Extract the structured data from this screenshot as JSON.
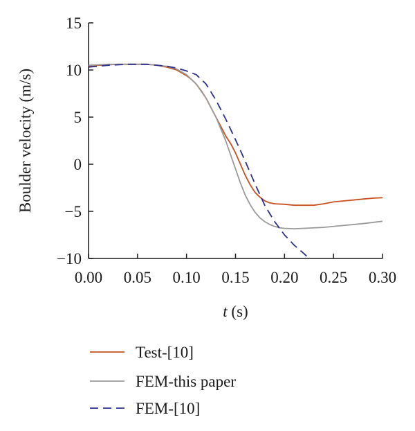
{
  "chart_data": {
    "type": "line",
    "xlabel_var": "t",
    "xlabel_unit": " (s)",
    "ylabel": "Boulder velocity (m/s)",
    "xlim": [
      0.0,
      0.3
    ],
    "ylim": [
      -10,
      15
    ],
    "x_ticks": [
      0.0,
      0.05,
      0.1,
      0.15,
      0.2,
      0.25,
      0.3
    ],
    "x_tick_labels": [
      "0.00",
      "0.05",
      "0.10",
      "0.15",
      "0.20",
      "0.25",
      "0.30"
    ],
    "y_ticks": [
      -10,
      -5,
      0,
      5,
      10,
      15
    ],
    "y_tick_labels": [
      "−10",
      "−5",
      "0",
      "5",
      "10",
      "15"
    ],
    "grid": false,
    "legend_position": "bottom",
    "series": [
      {
        "name": "Test-[10]",
        "color": "#c8501e",
        "dash": "solid",
        "x": [
          0.0,
          0.01,
          0.02,
          0.03,
          0.04,
          0.05,
          0.06,
          0.07,
          0.08,
          0.09,
          0.1,
          0.105,
          0.11,
          0.115,
          0.12,
          0.125,
          0.13,
          0.135,
          0.14,
          0.145,
          0.15,
          0.155,
          0.16,
          0.165,
          0.17,
          0.175,
          0.18,
          0.185,
          0.19,
          0.2,
          0.21,
          0.22,
          0.23,
          0.24,
          0.25,
          0.26,
          0.27,
          0.28,
          0.29,
          0.3
        ],
        "y": [
          10.4,
          10.5,
          10.55,
          10.6,
          10.6,
          10.6,
          10.6,
          10.5,
          10.3,
          10.0,
          9.4,
          9.0,
          8.5,
          7.8,
          7.0,
          6.0,
          5.0,
          4.0,
          3.0,
          2.2,
          1.2,
          0.0,
          -1.2,
          -2.2,
          -3.0,
          -3.5,
          -3.9,
          -4.1,
          -4.2,
          -4.25,
          -4.35,
          -4.35,
          -4.35,
          -4.2,
          -4.0,
          -3.9,
          -3.8,
          -3.7,
          -3.6,
          -3.55
        ]
      },
      {
        "name": "FEM-this paper",
        "color": "#9a9a9a",
        "dash": "solid",
        "x": [
          0.0,
          0.02,
          0.04,
          0.06,
          0.08,
          0.09,
          0.1,
          0.11,
          0.12,
          0.13,
          0.14,
          0.145,
          0.15,
          0.155,
          0.16,
          0.165,
          0.17,
          0.175,
          0.18,
          0.185,
          0.19,
          0.195,
          0.2,
          0.21,
          0.22,
          0.24,
          0.26,
          0.28,
          0.3
        ],
        "y": [
          10.5,
          10.6,
          10.6,
          10.6,
          10.4,
          10.1,
          9.5,
          8.5,
          7.0,
          5.0,
          2.5,
          1.0,
          -0.5,
          -2.0,
          -3.3,
          -4.3,
          -5.1,
          -5.7,
          -6.1,
          -6.4,
          -6.6,
          -6.75,
          -6.8,
          -6.85,
          -6.8,
          -6.7,
          -6.5,
          -6.3,
          -6.05
        ]
      },
      {
        "name": "FEM-[10]",
        "color": "#2b2f8f",
        "dash": "dashed",
        "x": [
          0.0,
          0.02,
          0.04,
          0.06,
          0.08,
          0.09,
          0.1,
          0.11,
          0.12,
          0.13,
          0.14,
          0.15,
          0.16,
          0.17,
          0.18,
          0.19,
          0.2,
          0.21,
          0.22,
          0.225
        ],
        "y": [
          10.3,
          10.5,
          10.6,
          10.6,
          10.4,
          10.2,
          9.9,
          9.5,
          8.5,
          6.8,
          4.8,
          2.6,
          0.3,
          -2.1,
          -4.4,
          -6.1,
          -7.5,
          -8.6,
          -9.5,
          -10.0
        ]
      }
    ]
  }
}
